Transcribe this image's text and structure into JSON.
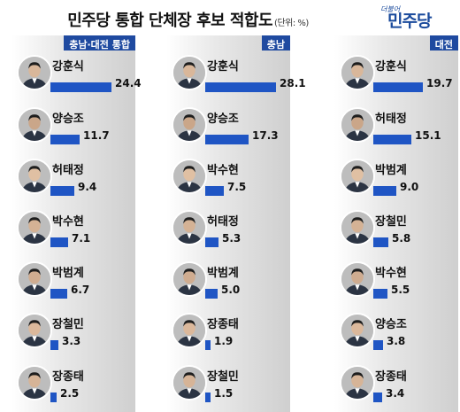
{
  "title": "민주당 통합 단체장 후보 적합도",
  "unit": "(단위: %)",
  "logo": {
    "small": "더불어",
    "big": "민주당"
  },
  "colors": {
    "bar": "#1f55c4",
    "header": "#1f4aa0"
  },
  "chart_data": [
    {
      "type": "bar",
      "title": "충남·대전 통합",
      "categories": [
        "강훈식",
        "양승조",
        "허태정",
        "박수현",
        "박범계",
        "장철민",
        "장종태"
      ],
      "values": [
        24.4,
        11.7,
        9.4,
        7.1,
        6.7,
        3.3,
        2.5
      ],
      "value_labels": [
        "24.4",
        "11.7",
        "9.4",
        "7.1",
        "6.7",
        "3.3",
        "2.5"
      ]
    },
    {
      "type": "bar",
      "title": "충남",
      "categories": [
        "강훈식",
        "양승조",
        "박수현",
        "허태정",
        "박범계",
        "장종태",
        "장철민"
      ],
      "values": [
        28.1,
        17.3,
        7.5,
        5.3,
        5.0,
        1.9,
        1.5
      ],
      "value_labels": [
        "28.1",
        "17.3",
        "7.5",
        "5.3",
        "5.0",
        "1.9",
        "1.5"
      ]
    },
    {
      "type": "bar",
      "title": "대전",
      "categories": [
        "강훈식",
        "허태정",
        "박범계",
        "장철민",
        "박수현",
        "양승조",
        "장종태"
      ],
      "values": [
        19.7,
        15.1,
        9.0,
        5.8,
        5.5,
        3.8,
        3.4
      ],
      "value_labels": [
        "19.7",
        "15.1",
        "9.0",
        "5.8",
        "5.5",
        "3.8",
        "3.4"
      ]
    }
  ]
}
